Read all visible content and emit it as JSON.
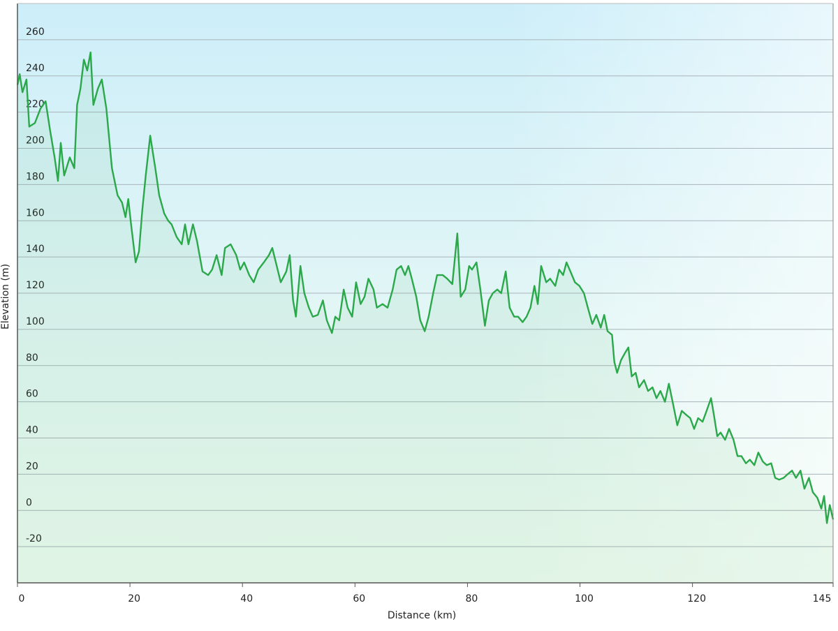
{
  "chart_data": {
    "type": "line",
    "xlabel": "Distance  (km)",
    "ylabel": "Elevation (m)",
    "x": [
      0,
      0.4,
      0.9,
      1.6,
      2.1,
      3.1,
      4.1,
      5.0,
      5.8,
      6.6,
      7.2,
      7.7,
      8.3,
      9.3,
      10.1,
      10.6,
      11.2,
      11.8,
      12.4,
      13.0,
      13.5,
      14.3,
      15.0,
      15.8,
      16.8,
      17.8,
      18.6,
      19.2,
      19.7,
      20.2,
      21.0,
      21.6,
      22.2,
      22.8,
      23.6,
      24.5,
      25.2,
      26.1,
      26.8,
      27.4,
      28.3,
      29.2,
      29.8,
      30.4,
      31.2,
      31.9,
      32.9,
      33.9,
      34.6,
      35.4,
      36.3,
      36.9,
      37.9,
      38.9,
      39.6,
      40.3,
      41.2,
      42.0,
      42.8,
      43.8,
      44.7,
      45.3,
      46.1,
      46.8,
      47.8,
      48.4,
      49.0,
      49.5,
      50.3,
      51.0,
      51.8,
      52.5,
      53.4,
      54.3,
      55.0,
      55.9,
      56.5,
      57.2,
      58.0,
      58.7,
      59.5,
      60.2,
      61.0,
      61.7,
      62.4,
      63.3,
      63.9,
      64.9,
      65.8,
      66.7,
      67.4,
      68.2,
      68.9,
      69.5,
      70.1,
      70.9,
      71.6,
      72.4,
      73.1,
      73.9,
      74.6,
      75.6,
      76.4,
      77.3,
      78.2,
      78.8,
      79.6,
      80.3,
      80.8,
      81.6,
      82.3,
      83.1,
      83.8,
      84.5,
      85.3,
      86.0,
      86.8,
      87.5,
      88.3,
      89.0,
      89.8,
      90.5,
      91.2,
      91.9,
      92.5,
      93.1,
      94.0,
      94.7,
      95.6,
      96.3,
      97.0,
      97.6,
      98.3,
      99.1,
      99.9,
      100.7,
      101.4,
      102.2,
      102.9,
      103.7,
      104.3,
      104.9,
      105.7,
      106.1,
      106.6,
      107.3,
      108.0,
      108.6,
      109.2,
      109.9,
      110.5,
      111.4,
      112.1,
      112.9,
      113.6,
      114.3,
      115.1,
      115.8,
      116.6,
      117.3,
      118.1,
      118.8,
      119.6,
      120.3,
      121.0,
      121.8,
      122.5,
      123.3,
      123.8,
      124.4,
      125.0,
      125.8,
      126.5,
      127.3,
      128.0,
      128.7,
      129.5,
      130.2,
      131.0,
      131.7,
      132.5,
      133.2,
      134.0,
      134.7,
      135.4,
      136.2,
      136.9,
      137.7,
      138.4,
      139.2,
      139.9,
      140.7,
      141.4,
      142.2,
      142.9,
      143.4,
      143.9,
      144.4,
      145.0
    ],
    "values": [
      235,
      241,
      231,
      238,
      212,
      214,
      222,
      226,
      210,
      195,
      182,
      203,
      185,
      195,
      189,
      224,
      233,
      249,
      243,
      253,
      224,
      233,
      238,
      222,
      189,
      174,
      170,
      162,
      172,
      158,
      137,
      143,
      166,
      185,
      207,
      189,
      174,
      164,
      160,
      158,
      151,
      147,
      158,
      147,
      158,
      149,
      132,
      130,
      133,
      141,
      130,
      145,
      147,
      141,
      133,
      137,
      130,
      126,
      133,
      137,
      141,
      145,
      135,
      126,
      132,
      141,
      116,
      107,
      135,
      120,
      112,
      107,
      108,
      116,
      105,
      98,
      107,
      105,
      122,
      112,
      107,
      126,
      114,
      118,
      128,
      122,
      112,
      114,
      112,
      122,
      133,
      135,
      130,
      135,
      128,
      118,
      105,
      99,
      107,
      120,
      130,
      130,
      128,
      125,
      153,
      118,
      122,
      135,
      133,
      137,
      122,
      102,
      116,
      120,
      122,
      120,
      132,
      112,
      107,
      107,
      104,
      107,
      112,
      124,
      114,
      135,
      126,
      128,
      124,
      133,
      130,
      137,
      132,
      126,
      124,
      120,
      112,
      103,
      108,
      101,
      108,
      99,
      97,
      82,
      76,
      83,
      87,
      90,
      74,
      76,
      68,
      72,
      66,
      68,
      62,
      66,
      60,
      70,
      58,
      47,
      55,
      53,
      51,
      45,
      51,
      49,
      55,
      62,
      53,
      41,
      43,
      39,
      45,
      39,
      30,
      30,
      26,
      28,
      25,
      32,
      27,
      25,
      26,
      18,
      17,
      18,
      20,
      22,
      18,
      22,
      12,
      18,
      10,
      7,
      1,
      8,
      -7,
      3,
      -5
    ],
    "color": "#2aa84a",
    "xlim": [
      0,
      145
    ],
    "xticks": [
      0,
      20,
      40,
      60,
      80,
      100,
      120,
      145
    ],
    "ylim": [
      -40,
      280
    ],
    "yticks": [
      -20,
      0,
      20,
      40,
      60,
      80,
      100,
      120,
      140,
      160,
      180,
      200,
      220,
      240,
      260
    ],
    "grid": true
  }
}
